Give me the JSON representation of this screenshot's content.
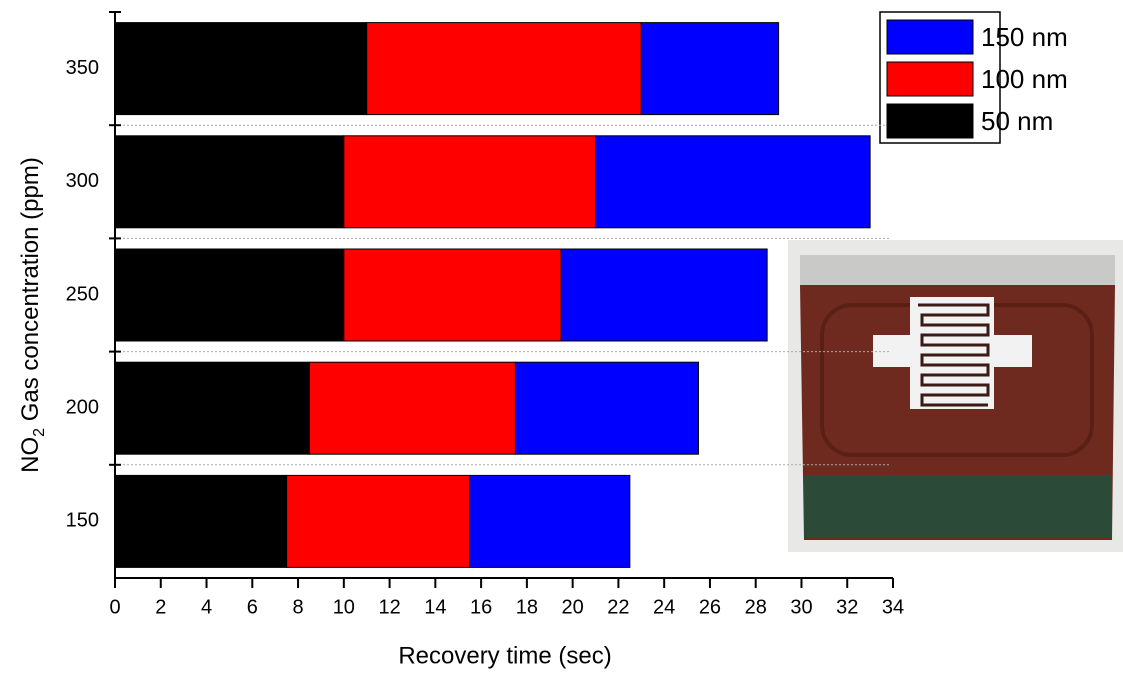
{
  "chart_data": {
    "type": "stacked_barh",
    "xlabel": "Recovery time (sec)",
    "ylabel": {
      "main": "NO",
      "sub": "2",
      "rest": " Gas concentration (ppm)"
    },
    "categories": [
      "150",
      "200",
      "250",
      "300",
      "350"
    ],
    "series": [
      {
        "name": "50 nm",
        "color": "#000000",
        "values": [
          7.5,
          8.5,
          10,
          10,
          11
        ]
      },
      {
        "name": "100 nm",
        "color": "#ff0000",
        "values": [
          8,
          9,
          9.5,
          11,
          12
        ]
      },
      {
        "name": "150 nm",
        "color": "#0000ff",
        "values": [
          7,
          8,
          9,
          12,
          6
        ]
      }
    ],
    "xlim": [
      0,
      34
    ],
    "xticks": [
      0,
      2,
      4,
      6,
      8,
      10,
      12,
      14,
      16,
      18,
      20,
      22,
      24,
      26,
      28,
      30,
      32,
      34
    ],
    "legend": "upper right"
  }
}
